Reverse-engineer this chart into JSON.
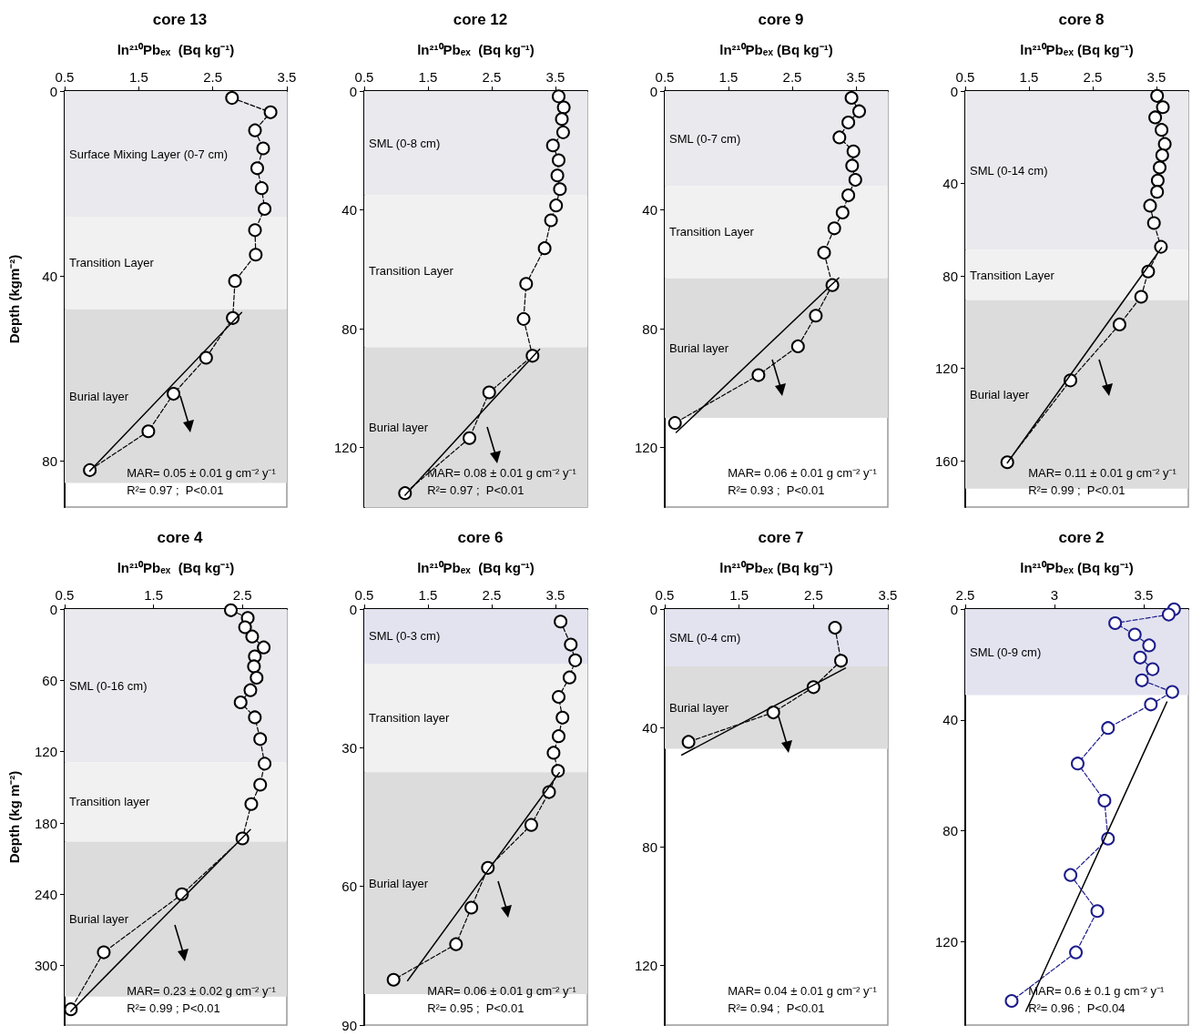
{
  "chart_data": [
    {
      "type": "line",
      "title": "core 13",
      "xlabel": "ln²¹⁰Pbₑₓ  (Bq kg⁻¹)",
      "ylabel": "Depth (kgm⁻²)",
      "xlim": [
        0.5,
        3.5
      ],
      "xticks": [
        0.5,
        1.5,
        2.5,
        3.5
      ],
      "ylim": [
        90,
        0
      ],
      "yticks": [
        0,
        40,
        80
      ],
      "series": [
        {
          "color": "#000000",
          "marker": "circle",
          "line_style": "dashed",
          "x": [
            2.76,
            3.28,
            3.07,
            3.18,
            3.1,
            3.16,
            3.2,
            3.07,
            3.08,
            2.8,
            2.77,
            2.41,
            1.97,
            1.63,
            0.84
          ],
          "values": [
            1.5,
            4.6,
            8.5,
            12.4,
            16.7,
            21.0,
            25.5,
            30.1,
            35.4,
            41.1,
            49.1,
            57.7,
            65.5,
            73.6,
            82.0
          ]
        },
        {
          "color": "#000000",
          "marker": "none",
          "line_style": "solid",
          "x": [
            2.89,
            0.84
          ],
          "values": [
            47.9,
            82.2
          ]
        }
      ],
      "bands": [
        {
          "axis": "y",
          "from": 0,
          "to": 27.2,
          "label": "Surface Mixing Layer (0-7 cm)",
          "color": "#e9e9ee"
        },
        {
          "axis": "y",
          "from": 27.2,
          "to": 47.2,
          "label": "Transition Layer",
          "color": "#f1f1f1"
        },
        {
          "axis": "y",
          "from": 47.2,
          "to": 84.8,
          "label": "Burial layer",
          "color": "#dcdcdc"
        }
      ],
      "annotations": [
        "MAR= 0.05 ± 0.01 g cm⁻² y⁻¹",
        "R²= 0.97 ;  P<0.01"
      ]
    },
    {
      "type": "line",
      "title": "core 12",
      "xlabel": "ln²¹⁰Pbₑₓ  (Bq kg⁻¹)",
      "xlim": [
        0.5,
        4.0
      ],
      "xticks": [
        0.5,
        1.5,
        2.5,
        3.5
      ],
      "ylim": [
        140,
        0
      ],
      "yticks": [
        0,
        40,
        80,
        120
      ],
      "series": [
        {
          "color": "#000000",
          "marker": "circle",
          "line_style": "dashed",
          "x": [
            3.55,
            3.63,
            3.6,
            3.62,
            3.46,
            3.55,
            3.53,
            3.57,
            3.51,
            3.43,
            3.33,
            3.04,
            3.0,
            3.14,
            2.46,
            2.15,
            1.14
          ],
          "values": [
            1.8,
            5.5,
            9.4,
            13.9,
            18.3,
            23.3,
            28.4,
            33.0,
            38.5,
            43.5,
            52.9,
            64.9,
            76.7,
            89.1,
            101.4,
            116.8,
            135.3
          ]
        },
        {
          "color": "#000000",
          "marker": "none",
          "line_style": "solid",
          "x": [
            3.25,
            1.14
          ],
          "values": [
            86.9,
            136
          ]
        }
      ],
      "bands": [
        {
          "axis": "y",
          "from": 0,
          "to": 35.1,
          "label": "SML (0-8 cm)",
          "color": "#e9e9ee"
        },
        {
          "axis": "y",
          "from": 35.1,
          "to": 86.2,
          "label": "Transition Layer",
          "color": "#f1f1f1"
        },
        {
          "axis": "y",
          "from": 86.2,
          "to": 140,
          "label": "Burial layer",
          "color": "#dcdcdc"
        }
      ],
      "annotations": [
        "MAR= 0.08 ± 0.01 g cm⁻² y⁻¹",
        "R²= 0.97 ;  P<0.01"
      ]
    },
    {
      "type": "line",
      "title": "core 9",
      "xlabel": "ln²¹⁰Pbₑₓ (Bq kg⁻¹)",
      "xlim": [
        0.5,
        4.0
      ],
      "xticks": [
        0.5,
        1.5,
        2.5,
        3.5
      ],
      "ylim": [
        140,
        0
      ],
      "yticks": [
        0,
        40,
        80,
        120
      ],
      "series": [
        {
          "color": "#000000",
          "marker": "circle",
          "line_style": "dashed",
          "x": [
            3.43,
            3.55,
            3.38,
            3.24,
            3.46,
            3.44,
            3.49,
            3.38,
            3.29,
            3.16,
            3.0,
            3.13,
            2.87,
            2.59,
            1.97,
            0.66
          ],
          "values": [
            2.3,
            6.8,
            10.6,
            15.6,
            20.3,
            25.1,
            29.9,
            35.1,
            40.9,
            46.2,
            54.4,
            65.3,
            75.6,
            85.9,
            95.6,
            111.7
          ]
        },
        {
          "color": "#000000",
          "marker": "none",
          "line_style": "solid",
          "x": [
            3.23,
            0.68
          ],
          "values": [
            62.9,
            114.9
          ]
        }
      ],
      "bands": [
        {
          "axis": "y",
          "from": 0,
          "to": 31.9,
          "label": "SML (0-7 cm)",
          "color": "#e9e9ee"
        },
        {
          "axis": "y",
          "from": 31.9,
          "to": 63,
          "label": "Transition Layer",
          "color": "#f1f1f1"
        },
        {
          "axis": "y",
          "from": 63,
          "to": 110,
          "label": "Burial layer",
          "color": "#dcdcdc"
        }
      ],
      "annotations": [
        "MAR= 0.06 ± 0.01 g cm⁻² y⁻¹",
        "R²= 0.93 ;  P<0.01"
      ]
    },
    {
      "type": "line",
      "title": "core 8",
      "xlabel": "ln²¹⁰Pbₑₓ (Bq kg⁻¹)",
      "xlim": [
        0.5,
        4.0
      ],
      "xticks": [
        0.5,
        1.5,
        2.5,
        3.5
      ],
      "ylim": [
        180,
        0
      ],
      "yticks": [
        0,
        40,
        80,
        120,
        160
      ],
      "series": [
        {
          "color": "#000000",
          "marker": "circle",
          "line_style": "dashed",
          "x": [
            3.51,
            3.6,
            3.48,
            3.58,
            3.63,
            3.59,
            3.55,
            3.52,
            3.51,
            3.4,
            3.46,
            3.57,
            3.37,
            3.26,
            2.92,
            2.15,
            1.16
          ],
          "values": [
            2.1,
            7.0,
            11.4,
            16.8,
            22.9,
            27.8,
            33.1,
            38.7,
            43.6,
            49.6,
            57.1,
            67.4,
            78.1,
            89.0,
            101.0,
            125.2,
            160.6
          ]
        },
        {
          "color": "#000000",
          "marker": "none",
          "line_style": "solid",
          "x": [
            3.58,
            1.16
          ],
          "values": [
            67.8,
            160.9
          ]
        }
      ],
      "bands": [
        {
          "axis": "y",
          "from": 0,
          "to": 68.7,
          "label": "SML (0-14 cm)",
          "color": "#e9e9ee"
        },
        {
          "axis": "y",
          "from": 68.7,
          "to": 90.5,
          "label": "Transition Layer",
          "color": "#f1f1f1"
        },
        {
          "axis": "y",
          "from": 90.5,
          "to": 172,
          "label": "Burial layer",
          "color": "#dcdcdc"
        }
      ],
      "annotations": [
        "MAR= 0.11 ± 0.01 g cm⁻² y⁻¹",
        "R²= 0.99 ;  P<0.01"
      ]
    },
    {
      "type": "line",
      "title": "core 4",
      "xlabel": "ln²¹⁰Pbₑₓ  (Bq kg⁻¹)",
      "ylabel": "Depth (kg m⁻²)",
      "xlim": [
        0.5,
        3.0
      ],
      "xticks": [
        0.5,
        1.5,
        2.5
      ],
      "ylim": [
        350,
        0
      ],
      "yticks": [
        0,
        60,
        120,
        180,
        240,
        300
      ],
      "series": [
        {
          "color": "#000000",
          "marker": "circle",
          "line_style": "dashed",
          "x": [
            2.37,
            2.56,
            2.53,
            2.61,
            2.74,
            2.64,
            2.63,
            2.66,
            2.59,
            2.48,
            2.64,
            2.7,
            2.75,
            2.7,
            2.6,
            2.5,
            1.82,
            0.94,
            0.57
          ],
          "values": [
            1.0,
            7.5,
            15.3,
            23.1,
            32.3,
            39.8,
            48.2,
            57.8,
            68.3,
            78.5,
            91.1,
            109.4,
            130.1,
            147.8,
            164.1,
            193.0,
            239.9,
            288.8,
            336.7
          ]
        },
        {
          "color": "#000000",
          "marker": "none",
          "line_style": "solid",
          "x": [
            2.59,
            0.57
          ],
          "values": [
            185.5,
            338.4
          ]
        }
      ],
      "bands": [
        {
          "axis": "y",
          "from": 0,
          "to": 129,
          "label": "SML (0-16 cm)",
          "color": "#e9e9ee"
        },
        {
          "axis": "y",
          "from": 129,
          "to": 195.7,
          "label": "Transition layer",
          "color": "#f1f1f1"
        },
        {
          "axis": "y",
          "from": 195.7,
          "to": 326,
          "label": "Burial layer",
          "color": "#dcdcdc"
        }
      ],
      "annotations": [
        "MAR= 0.23 ± 0.02 g cm⁻² y⁻¹",
        "R²= 0.99 ; P<0.01"
      ]
    },
    {
      "type": "line",
      "title": "core 6",
      "xlabel": "ln²¹⁰Pbₑₓ  (Bq kg⁻¹)",
      "xlim": [
        0.5,
        4.0
      ],
      "xticks": [
        0.5,
        1.5,
        2.5,
        3.5
      ],
      "ylim": [
        90,
        0
      ],
      "yticks": [
        0,
        30,
        60,
        90
      ],
      "series": [
        {
          "color": "#000000",
          "marker": "circle",
          "line_style": "dashed",
          "x": [
            3.58,
            3.74,
            3.81,
            3.72,
            3.55,
            3.61,
            3.55,
            3.47,
            3.54,
            3.4,
            3.12,
            2.44,
            2.18,
            1.94,
            0.96
          ],
          "values": [
            2.7,
            7.7,
            11.1,
            14.8,
            19.0,
            23.5,
            27.5,
            31.1,
            35.0,
            39.6,
            46.7,
            56.0,
            64.6,
            72.5,
            80.2
          ]
        },
        {
          "color": "#000000",
          "marker": "none",
          "line_style": "solid",
          "x": [
            3.56,
            1.18
          ],
          "values": [
            35.4,
            80.4
          ]
        }
      ],
      "bands": [
        {
          "axis": "y",
          "from": 0,
          "to": 11.8,
          "label": "SML (0-3 cm)",
          "color": "#e3e3f0"
        },
        {
          "axis": "y",
          "from": 11.8,
          "to": 35.3,
          "label": "Transition layer",
          "color": "#f1f1f1"
        },
        {
          "axis": "y",
          "from": 35.3,
          "to": 83.3,
          "label": "Burial layer",
          "color": "#dcdcdc"
        }
      ],
      "annotations": [
        "MAR= 0.06 ± 0.01 g cm⁻² y⁻¹",
        "R²= 0.95 ;  P<0.01"
      ]
    },
    {
      "type": "line",
      "title": "core 7",
      "xlabel": "ln²¹⁰Pbₑₓ (Bq kg⁻¹)",
      "xlim": [
        0.5,
        3.5
      ],
      "xticks": [
        0.5,
        1.5,
        2.5,
        3.5
      ],
      "ylim": [
        140,
        0
      ],
      "yticks": [
        0,
        40,
        80,
        120
      ],
      "series": [
        {
          "color": "#000000",
          "marker": "circle",
          "line_style": "dashed",
          "x": [
            2.79,
            2.87,
            2.5,
            1.96,
            0.82
          ],
          "values": [
            6.3,
            17.4,
            26.3,
            34.8,
            44.7
          ]
        },
        {
          "color": "#000000",
          "marker": "none",
          "line_style": "solid",
          "x": [
            2.93,
            0.73
          ],
          "values": [
            19.9,
            49.1
          ]
        }
      ],
      "bands": [
        {
          "axis": "y",
          "from": 0,
          "to": 19.3,
          "label": "SML (0-4 cm)",
          "color": "#e3e3f0"
        },
        {
          "axis": "y",
          "from": 19.3,
          "to": 47,
          "label": "Burial layer",
          "color": "#dcdcdc"
        }
      ],
      "annotations": [
        "MAR= 0.04 ± 0.01 g cm⁻² y⁻¹",
        "R²= 0.94 ;  P<0.01"
      ]
    },
    {
      "type": "line",
      "title": "core 2",
      "xlabel": "ln²¹⁰Pbₑₓ (Bq kg⁻¹)",
      "xlim": [
        2.5,
        3.75
      ],
      "xticks": [
        2.5,
        3.0,
        3.5
      ],
      "ylim": [
        150,
        0
      ],
      "yticks": [
        0,
        40,
        80,
        120
      ],
      "series": [
        {
          "color": "#1c1c8a",
          "marker": "circle",
          "line_style": "dashed",
          "x": [
            3.67,
            3.64,
            3.34,
            3.45,
            3.53,
            3.48,
            3.55,
            3.49,
            3.66,
            3.54,
            3.3,
            3.13,
            3.28,
            3.3,
            3.09,
            3.24,
            3.12,
            2.76
          ],
          "values": [
            0.1,
            2.0,
            5.1,
            9.2,
            13.1,
            17.5,
            21.7,
            25.7,
            29.9,
            34.4,
            42.9,
            55.7,
            69.1,
            82.8,
            95.9,
            108.9,
            123.8,
            141.3
          ]
        },
        {
          "color": "#000000",
          "marker": "none",
          "line_style": "solid",
          "x": [
            3.63,
            2.84
          ],
          "values": [
            33.5,
            145
          ]
        }
      ],
      "bands": [
        {
          "axis": "y",
          "from": 0,
          "to": 31,
          "label": "SML (0-9 cm)",
          "color": "#e3e3f0"
        }
      ],
      "annotations": [
        "MAR= 0.6 ± 0.1 g cm⁻² y⁻¹",
        "R²= 0.96 ;  P<0.04"
      ]
    }
  ]
}
